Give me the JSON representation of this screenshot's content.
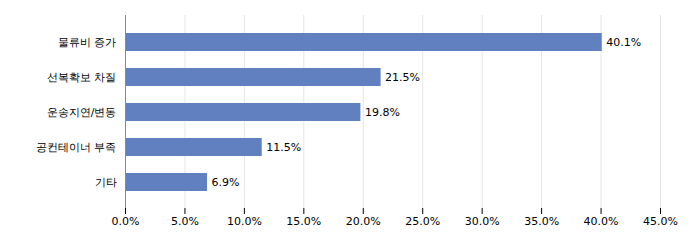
{
  "chart_data": {
    "type": "bar",
    "orientation": "horizontal",
    "categories": [
      "기타",
      "공컨테이너 부족",
      "운송지연/변동",
      "선복확보 차질",
      "물류비 증가"
    ],
    "values": [
      6.9,
      11.5,
      19.8,
      21.5,
      40.1
    ],
    "value_labels": [
      "6.9%",
      "11.5%",
      "19.8%",
      "21.5%",
      "40.1%"
    ],
    "data_labels": true,
    "color": "#6080c0",
    "xlim": [
      0,
      45
    ],
    "xticks": [
      {
        "value": 0,
        "label": "0.0%"
      },
      {
        "value": 5,
        "label": "5.0%"
      },
      {
        "value": 10,
        "label": "10.0%"
      },
      {
        "value": 15,
        "label": "15.0%"
      },
      {
        "value": 20,
        "label": "20.0%"
      },
      {
        "value": 25,
        "label": "25.0%"
      },
      {
        "value": 30,
        "label": "30.0%"
      },
      {
        "value": 35,
        "label": "35.0%"
      },
      {
        "value": 40,
        "label": "40.0%"
      },
      {
        "value": 45,
        "label": "45.0%"
      }
    ],
    "grid": true
  }
}
